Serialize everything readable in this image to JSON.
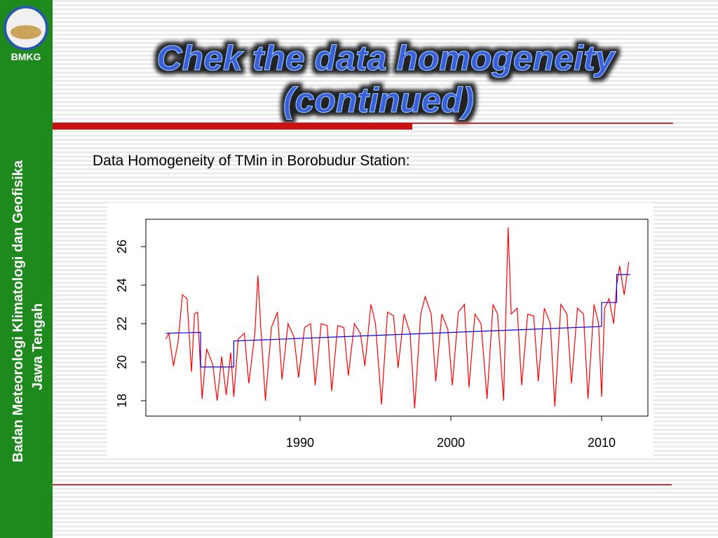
{
  "slide": {
    "logo": "BMKG",
    "sidebar": [
      "Badan Meteorologi Klimatologi dan Geofisika",
      "Jawa Tengah"
    ],
    "title": [
      "Chek the data homogeneity",
      "(continued)"
    ],
    "subtitle": "Data Homogeneity of TMin in Borobudur Station:"
  },
  "chart_data": {
    "type": "line",
    "xlim": [
      1979.77,
      2013.07
    ],
    "ylim": [
      17.2,
      27.42
    ],
    "xticks": [
      1990,
      2000,
      2010
    ],
    "yticks": [
      18,
      20,
      22,
      24,
      26
    ],
    "series": [
      {
        "color": "#ff0000",
        "x": [
          1981.1,
          1981.3,
          1981.6,
          1981.9,
          1982.2,
          1982.5,
          1982.8,
          1983.0,
          1983.2,
          1983.5,
          1983.8,
          1984.2,
          1984.5,
          1984.8,
          1985.1,
          1985.4,
          1985.6,
          1985.9,
          1986.3,
          1986.6,
          1987.0,
          1987.2,
          1987.4,
          1987.7,
          1988.1,
          1988.5,
          1988.8,
          1989.2,
          1989.6,
          1989.9,
          1990.3,
          1990.7,
          1991.0,
          1991.4,
          1991.8,
          1992.1,
          1992.5,
          1992.9,
          1993.2,
          1993.6,
          1994.0,
          1994.3,
          1994.7,
          1995.0,
          1995.4,
          1995.8,
          1996.2,
          1996.5,
          1996.9,
          1997.3,
          1997.6,
          1998.0,
          1998.3,
          1998.7,
          1999.0,
          1999.4,
          1999.8,
          2000.1,
          2000.5,
          2000.9,
          2001.2,
          2001.6,
          2002.0,
          2002.4,
          2002.8,
          2003.1,
          2003.5,
          2003.8,
          2004.0,
          2004.4,
          2004.7,
          2005.1,
          2005.5,
          2005.8,
          2006.2,
          2006.6,
          2006.9,
          2007.3,
          2007.7,
          2008.0,
          2008.4,
          2008.8,
          2009.1,
          2009.5,
          2009.8,
          2010.0,
          2010.2,
          2010.5,
          2010.8,
          2011.0,
          2011.2,
          2011.5,
          2011.8
        ],
        "values": [
          21.2,
          21.5,
          19.8,
          21.0,
          23.5,
          23.3,
          19.5,
          22.5,
          22.6,
          18.1,
          20.7,
          19.9,
          18.0,
          20.3,
          18.3,
          20.5,
          18.2,
          21.2,
          21.5,
          18.9,
          21.5,
          24.5,
          21.7,
          18.0,
          21.8,
          22.6,
          19.1,
          22.0,
          21.3,
          19.2,
          21.8,
          22.0,
          18.8,
          22.0,
          21.9,
          18.5,
          21.9,
          21.8,
          19.3,
          22.0,
          21.5,
          19.8,
          23.0,
          22.0,
          17.8,
          22.6,
          22.4,
          19.7,
          22.5,
          21.5,
          17.6,
          22.5,
          23.4,
          22.5,
          19.0,
          22.5,
          21.7,
          18.8,
          22.6,
          23.0,
          18.7,
          22.5,
          22.0,
          18.1,
          23.0,
          22.5,
          18.0,
          27.0,
          22.5,
          22.8,
          18.8,
          22.5,
          22.4,
          19.0,
          22.8,
          22.0,
          17.7,
          23.0,
          22.5,
          18.9,
          22.8,
          22.5,
          18.1,
          23.0,
          22.0,
          18.2,
          22.8,
          23.3,
          22.0,
          24.0,
          25.0,
          23.5,
          25.2
        ]
      },
      {
        "color": "#0000ff",
        "x": [
          1981.1,
          1983.4,
          1983.4,
          1985.6,
          1985.6,
          2010.0,
          2010.0,
          2011.0,
          2011.0,
          2011.9
        ],
        "values": [
          21.5,
          21.55,
          19.75,
          19.75,
          21.1,
          21.85,
          23.1,
          23.1,
          24.55,
          24.55
        ]
      }
    ]
  }
}
